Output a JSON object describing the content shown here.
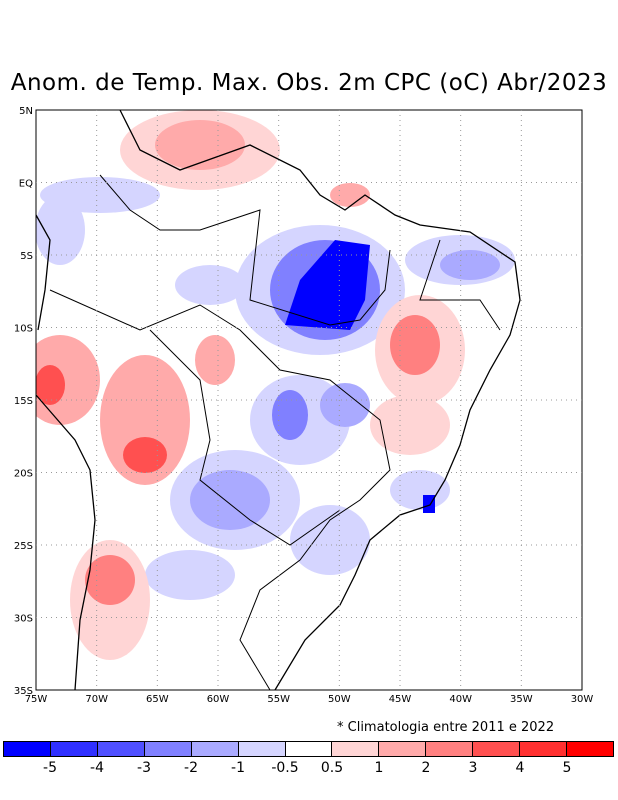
{
  "title": "Anom. de Temp. Max. Obs. 2m CPC (oC) Abr/2023",
  "note": "* Climatologia entre 2011 e 2022",
  "axes": {
    "lon_labels": [
      "75W",
      "70W",
      "65W",
      "60W",
      "55W",
      "50W",
      "45W",
      "40W",
      "35W",
      "30W"
    ],
    "lat_labels": [
      "5N",
      "EQ",
      "5S",
      "10S",
      "15S",
      "20S",
      "25S",
      "30S",
      "35S"
    ]
  },
  "colorbar": {
    "colors": [
      "#0000ff",
      "#3030ff",
      "#5050ff",
      "#8080ff",
      "#aaaaff",
      "#d5d5ff",
      "#ffffff",
      "#ffd5d5",
      "#ffaaaa",
      "#ff8080",
      "#ff5050",
      "#ff3030",
      "#ff0000"
    ],
    "labels": [
      "-5",
      "-4",
      "-3",
      "-2",
      "-1",
      "-0.5",
      "0.5",
      "1",
      "2",
      "3",
      "4",
      "5"
    ]
  }
}
